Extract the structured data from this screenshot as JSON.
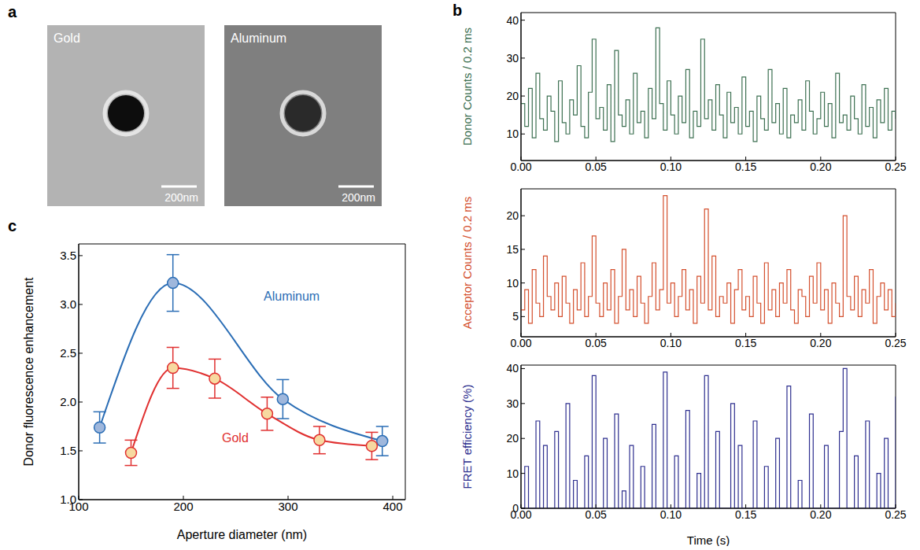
{
  "images": {
    "panel": "a",
    "items": [
      {
        "label": "Gold",
        "scale_bar": "200nm"
      },
      {
        "label": "Aluminum",
        "scale_bar": "200nm"
      }
    ]
  },
  "chart_data": [
    {
      "type": "line",
      "panel": "b",
      "line_style": "step",
      "color": "#3d7052",
      "y_label": "Donor Counts / 0.2 ms",
      "xlim": [
        0,
        0.25
      ],
      "xticks": [
        {
          "value": 0,
          "label": "0.00"
        },
        {
          "value": 0.05,
          "label": "0.05"
        },
        {
          "value": 0.1,
          "label": "0.10"
        },
        {
          "value": 0.15,
          "label": "0.15"
        },
        {
          "value": 0.2,
          "label": "0.20"
        },
        {
          "value": 0.25,
          "label": "0.25"
        }
      ],
      "ylim": [
        3,
        42
      ],
      "yticks": [
        10,
        20,
        30,
        40
      ],
      "x": [
        0,
        0.0025,
        0.005,
        0.0075,
        0.01,
        0.0125,
        0.015,
        0.0175,
        0.02,
        0.0225,
        0.025,
        0.0275,
        0.03,
        0.0325,
        0.035,
        0.0375,
        0.04,
        0.0425,
        0.045,
        0.0475,
        0.05,
        0.0525,
        0.055,
        0.0575,
        0.06,
        0.0625,
        0.065,
        0.0675,
        0.07,
        0.0725,
        0.075,
        0.0775,
        0.08,
        0.0825,
        0.085,
        0.0875,
        0.09,
        0.0925,
        0.095,
        0.0975,
        0.1,
        0.1025,
        0.105,
        0.1075,
        0.11,
        0.1125,
        0.115,
        0.1175,
        0.12,
        0.1225,
        0.125,
        0.1275,
        0.13,
        0.1325,
        0.135,
        0.1375,
        0.14,
        0.1425,
        0.145,
        0.1475,
        0.15,
        0.1525,
        0.155,
        0.1575,
        0.16,
        0.1625,
        0.165,
        0.1675,
        0.17,
        0.1725,
        0.175,
        0.1775,
        0.18,
        0.1825,
        0.185,
        0.1875,
        0.19,
        0.1925,
        0.195,
        0.1975,
        0.2,
        0.2025,
        0.205,
        0.2075,
        0.21,
        0.2125,
        0.215,
        0.2175,
        0.22,
        0.2225,
        0.225,
        0.2275,
        0.23,
        0.2325,
        0.235,
        0.2375,
        0.24,
        0.2425,
        0.245,
        0.2475,
        0.25
      ],
      "values": [
        18,
        12,
        22,
        9,
        26,
        14,
        11,
        20,
        16,
        8,
        24,
        13,
        10,
        19,
        15,
        28,
        12,
        9,
        21,
        35,
        14,
        17,
        11,
        23,
        8,
        32,
        15,
        12,
        19,
        10,
        26,
        13,
        16,
        9,
        22,
        14,
        38,
        18,
        11,
        24,
        15,
        10,
        20,
        13,
        27,
        9,
        16,
        12,
        35,
        14,
        19,
        11,
        23,
        15,
        9,
        21,
        13,
        17,
        10,
        25,
        12,
        16,
        8,
        20,
        14,
        11,
        27,
        13,
        18,
        10,
        22,
        9,
        15,
        13,
        19,
        11,
        24,
        16,
        10,
        14,
        21,
        12,
        18,
        9,
        26,
        13,
        15,
        11,
        20,
        14,
        10,
        23,
        12,
        17,
        9,
        19,
        13,
        22,
        11,
        16,
        14
      ]
    },
    {
      "type": "line",
      "line_style": "step",
      "color": "#d4502e",
      "y_label": "Acceptor Counts / 0.2 ms",
      "xlim": [
        0,
        0.25
      ],
      "xticks": [
        {
          "value": 0,
          "label": "0.00"
        },
        {
          "value": 0.05,
          "label": "0.05"
        },
        {
          "value": 0.1,
          "label": "0.10"
        },
        {
          "value": 0.15,
          "label": "0.15"
        },
        {
          "value": 0.2,
          "label": "0.20"
        },
        {
          "value": 0.25,
          "label": "0.25"
        }
      ],
      "ylim": [
        2,
        24
      ],
      "yticks": [
        5,
        10,
        15,
        20
      ],
      "x": [
        0,
        0.0025,
        0.005,
        0.0075,
        0.01,
        0.0125,
        0.015,
        0.0175,
        0.02,
        0.0225,
        0.025,
        0.0275,
        0.03,
        0.0325,
        0.035,
        0.0375,
        0.04,
        0.0425,
        0.045,
        0.0475,
        0.05,
        0.0525,
        0.055,
        0.0575,
        0.06,
        0.0625,
        0.065,
        0.0675,
        0.07,
        0.0725,
        0.075,
        0.0775,
        0.08,
        0.0825,
        0.085,
        0.0875,
        0.09,
        0.0925,
        0.095,
        0.0975,
        0.1,
        0.1025,
        0.105,
        0.1075,
        0.11,
        0.1125,
        0.115,
        0.1175,
        0.12,
        0.1225,
        0.125,
        0.1275,
        0.13,
        0.1325,
        0.135,
        0.1375,
        0.14,
        0.1425,
        0.145,
        0.1475,
        0.15,
        0.1525,
        0.155,
        0.1575,
        0.16,
        0.1625,
        0.165,
        0.1675,
        0.17,
        0.1725,
        0.175,
        0.1775,
        0.18,
        0.1825,
        0.185,
        0.1875,
        0.19,
        0.1925,
        0.195,
        0.1975,
        0.2,
        0.2025,
        0.205,
        0.2075,
        0.21,
        0.2125,
        0.215,
        0.2175,
        0.22,
        0.2225,
        0.225,
        0.2275,
        0.23,
        0.2325,
        0.235,
        0.2375,
        0.24,
        0.2425,
        0.245,
        0.2475,
        0.25
      ],
      "values": [
        6,
        9,
        4,
        12,
        7,
        5,
        14,
        8,
        6,
        10,
        5,
        11,
        7,
        4,
        9,
        6,
        13,
        5,
        8,
        17,
        7,
        5,
        10,
        6,
        12,
        4,
        8,
        15,
        6,
        9,
        5,
        11,
        7,
        4,
        8,
        13,
        6,
        9,
        23,
        7,
        10,
        5,
        8,
        12,
        6,
        9,
        4,
        11,
        7,
        21,
        6,
        14,
        5,
        8,
        7,
        10,
        4,
        9,
        12,
        6,
        8,
        5,
        11,
        7,
        4,
        13,
        6,
        9,
        5,
        10,
        7,
        12,
        6,
        4,
        9,
        8,
        5,
        11,
        7,
        13,
        6,
        9,
        4,
        10,
        7,
        5,
        20,
        8,
        6,
        11,
        5,
        9,
        7,
        12,
        4,
        8,
        10,
        6,
        9,
        5,
        7
      ]
    },
    {
      "type": "line",
      "line_style": "step",
      "color": "#2e2f8f",
      "y_label": "FRET efficiency (%)",
      "x_label": "Time (s)",
      "xlim": [
        0,
        0.25
      ],
      "xticks": [
        {
          "value": 0,
          "label": "0.00"
        },
        {
          "value": 0.05,
          "label": "0.05"
        },
        {
          "value": 0.1,
          "label": "0.10"
        },
        {
          "value": 0.15,
          "label": "0.15"
        },
        {
          "value": 0.2,
          "label": "0.20"
        },
        {
          "value": 0.25,
          "label": "0.25"
        }
      ],
      "ylim": [
        0,
        41
      ],
      "yticks": [
        0,
        10,
        20,
        30,
        40
      ],
      "x": [
        0,
        0.0025,
        0.005,
        0.0075,
        0.01,
        0.0125,
        0.015,
        0.0175,
        0.02,
        0.0225,
        0.025,
        0.0275,
        0.03,
        0.0325,
        0.035,
        0.0375,
        0.04,
        0.0425,
        0.045,
        0.0475,
        0.05,
        0.0525,
        0.055,
        0.0575,
        0.06,
        0.0625,
        0.065,
        0.0675,
        0.07,
        0.0725,
        0.075,
        0.0775,
        0.08,
        0.0825,
        0.085,
        0.0875,
        0.09,
        0.0925,
        0.095,
        0.0975,
        0.1,
        0.1025,
        0.105,
        0.1075,
        0.11,
        0.1125,
        0.115,
        0.1175,
        0.12,
        0.1225,
        0.125,
        0.1275,
        0.13,
        0.1325,
        0.135,
        0.1375,
        0.14,
        0.1425,
        0.145,
        0.1475,
        0.15,
        0.1525,
        0.155,
        0.1575,
        0.16,
        0.1625,
        0.165,
        0.1675,
        0.17,
        0.1725,
        0.175,
        0.1775,
        0.18,
        0.1825,
        0.185,
        0.1875,
        0.19,
        0.1925,
        0.195,
        0.1975,
        0.2,
        0.2025,
        0.205,
        0.2075,
        0.21,
        0.2125,
        0.215,
        0.2175,
        0.22,
        0.2225,
        0.225,
        0.2275,
        0.23,
        0.2325,
        0.235,
        0.2375,
        0.24,
        0.2425,
        0.245,
        0.2475,
        0.25
      ],
      "values": [
        0,
        12,
        0,
        0,
        25,
        0,
        18,
        0,
        0,
        22,
        0,
        0,
        30,
        0,
        8,
        0,
        0,
        15,
        0,
        38,
        0,
        0,
        20,
        0,
        0,
        27,
        0,
        5,
        0,
        18,
        0,
        0,
        12,
        0,
        0,
        24,
        0,
        0,
        39,
        0,
        0,
        15,
        0,
        0,
        28,
        0,
        0,
        10,
        0,
        38,
        0,
        0,
        22,
        0,
        0,
        0,
        30,
        0,
        18,
        0,
        0,
        0,
        25,
        0,
        0,
        12,
        0,
        0,
        20,
        0,
        0,
        35,
        0,
        0,
        8,
        0,
        0,
        27,
        0,
        0,
        0,
        18,
        0,
        0,
        0,
        22,
        40,
        0,
        0,
        15,
        0,
        0,
        25,
        0,
        0,
        10,
        0,
        20,
        0,
        0,
        32
      ]
    },
    {
      "type": "line",
      "panel": "c",
      "line_style": "smooth",
      "marker": "circle",
      "x_label": "Aperture diameter (nm)",
      "y_label": "Donor fluorescence enhancement",
      "xlim": [
        100,
        412
      ],
      "xticks": [
        100,
        200,
        300,
        400
      ],
      "ylim": [
        1,
        3.62
      ],
      "yticks": [
        {
          "value": 1,
          "label": "1.0"
        },
        {
          "value": 1.5,
          "label": "1.5"
        },
        {
          "value": 2,
          "label": "2.0"
        },
        {
          "value": 2.5,
          "label": "2.5"
        },
        {
          "value": 3,
          "label": "3.0"
        },
        {
          "value": 3.5,
          "label": "3.5"
        }
      ],
      "series": [
        {
          "name": "Aluminum",
          "color": "#2a6db5",
          "x": [
            120,
            190,
            295,
            390
          ],
          "values": [
            1.74,
            3.22,
            2.03,
            1.6
          ],
          "errors": [
            0.16,
            0.29,
            0.2,
            0.15
          ]
        },
        {
          "name": "Gold",
          "color": "#e03030",
          "x": [
            150,
            190,
            230,
            280,
            330,
            380
          ],
          "values": [
            1.48,
            2.35,
            2.24,
            1.88,
            1.61,
            1.55
          ],
          "errors": [
            0.13,
            0.21,
            0.2,
            0.17,
            0.14,
            0.14
          ]
        }
      ]
    }
  ]
}
